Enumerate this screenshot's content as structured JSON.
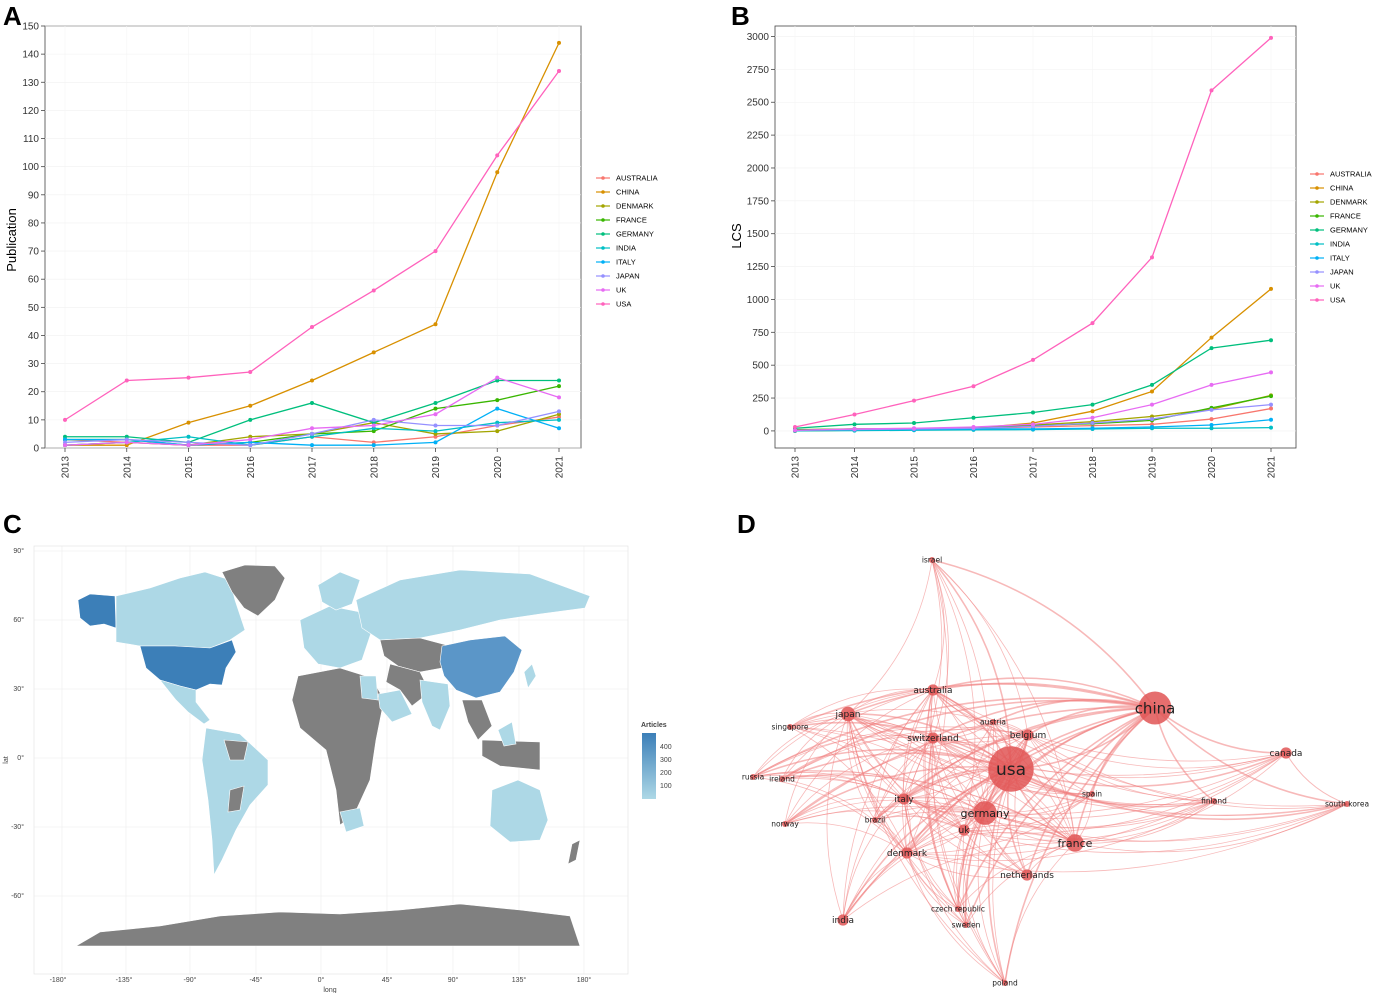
{
  "figure": {
    "panels": [
      "A",
      "B",
      "C",
      "D"
    ]
  },
  "chart_data": [
    {
      "id": "A",
      "type": "line",
      "ylabel": "Publication",
      "xlabel": "",
      "x": [
        "2013",
        "2014",
        "2015",
        "2016",
        "2017",
        "2018",
        "2019",
        "2020",
        "2021"
      ],
      "ylim": [
        0,
        150
      ],
      "yticks": [
        0,
        10,
        20,
        30,
        40,
        50,
        60,
        70,
        80,
        90,
        100,
        110,
        120,
        130,
        140,
        150
      ],
      "series": [
        {
          "name": "AUSTRALIA",
          "color": "#F8766D",
          "values": [
            3,
            2,
            1,
            1,
            4,
            2,
            4,
            8,
            11
          ]
        },
        {
          "name": "CHINA",
          "color": "#D89000",
          "values": [
            1,
            1,
            9,
            15,
            24,
            34,
            44,
            98,
            144
          ]
        },
        {
          "name": "DENMARK",
          "color": "#A3A500",
          "values": [
            1,
            2,
            1,
            4,
            5,
            9,
            5,
            6,
            12
          ]
        },
        {
          "name": "FRANCE",
          "color": "#39B600",
          "values": [
            3,
            3,
            1,
            2,
            5,
            6,
            14,
            17,
            22
          ]
        },
        {
          "name": "GERMANY",
          "color": "#00BF7D",
          "values": [
            4,
            4,
            2,
            10,
            16,
            9,
            16,
            24,
            24
          ]
        },
        {
          "name": "INDIA",
          "color": "#00BFC4",
          "values": [
            1,
            2,
            4,
            1,
            4,
            7,
            6,
            9,
            10
          ]
        },
        {
          "name": "ITALY",
          "color": "#00B0F6",
          "values": [
            3,
            3,
            1,
            2,
            1,
            1,
            2,
            14,
            7
          ]
        },
        {
          "name": "JAPAN",
          "color": "#9590FF",
          "values": [
            2,
            3,
            2,
            1,
            5,
            10,
            8,
            8,
            13
          ]
        },
        {
          "name": "UK",
          "color": "#E76BF3",
          "values": [
            1,
            2,
            1,
            3,
            7,
            8,
            12,
            25,
            18
          ]
        },
        {
          "name": "USA",
          "color": "#FF62BC",
          "values": [
            10,
            24,
            25,
            27,
            43,
            56,
            70,
            104,
            134
          ]
        }
      ]
    },
    {
      "id": "B",
      "type": "line",
      "ylabel": "LCS",
      "xlabel": "",
      "x": [
        "2013",
        "2014",
        "2015",
        "2016",
        "2017",
        "2018",
        "2019",
        "2020",
        "2021"
      ],
      "ylim": [
        -130,
        3080
      ],
      "yticks": [
        0,
        250,
        500,
        750,
        1000,
        1250,
        1500,
        1750,
        2000,
        2250,
        2500,
        2750,
        3000
      ],
      "series": [
        {
          "name": "AUSTRALIA",
          "color": "#F8766D",
          "values": [
            8,
            15,
            18,
            20,
            30,
            40,
            50,
            90,
            170
          ]
        },
        {
          "name": "CHINA",
          "color": "#D89000",
          "values": [
            0,
            5,
            10,
            20,
            60,
            150,
            300,
            710,
            1080
          ]
        },
        {
          "name": "DENMARK",
          "color": "#A3A500",
          "values": [
            0,
            5,
            10,
            25,
            45,
            70,
            110,
            165,
            270
          ]
        },
        {
          "name": "FRANCE",
          "color": "#39B600",
          "values": [
            10,
            15,
            15,
            25,
            40,
            55,
            80,
            175,
            265
          ]
        },
        {
          "name": "GERMANY",
          "color": "#00BF7D",
          "values": [
            20,
            50,
            60,
            100,
            140,
            200,
            350,
            630,
            690
          ]
        },
        {
          "name": "INDIA",
          "color": "#00BFC4",
          "values": [
            0,
            2,
            5,
            8,
            10,
            15,
            20,
            20,
            25
          ]
        },
        {
          "name": "ITALY",
          "color": "#00B0F6",
          "values": [
            5,
            10,
            10,
            15,
            15,
            20,
            30,
            45,
            85
          ]
        },
        {
          "name": "JAPAN",
          "color": "#9590FF",
          "values": [
            5,
            10,
            15,
            20,
            35,
            60,
            90,
            160,
            200
          ]
        },
        {
          "name": "UK",
          "color": "#E76BF3",
          "values": [
            5,
            15,
            20,
            30,
            50,
            100,
            200,
            350,
            445
          ]
        },
        {
          "name": "USA",
          "color": "#FF62BC",
          "values": [
            30,
            125,
            230,
            340,
            540,
            820,
            1320,
            2590,
            2990
          ]
        }
      ]
    },
    {
      "id": "C",
      "type": "heatmap",
      "xlabel": "long",
      "ylabel": "lat",
      "xticks": [
        "-180°",
        "-135°",
        "-90°",
        "-45°",
        "0°",
        "45°",
        "90°",
        "135°",
        "180°"
      ],
      "yticks": [
        "90°",
        "60°",
        "30°",
        "0°",
        "-30°",
        "-60°"
      ],
      "legend": {
        "title": "Articles",
        "ticks": [
          "400",
          "300",
          "200",
          "100"
        ]
      },
      "colors": {
        "no_data": "#808080",
        "low": "#ADD8E6",
        "high": "#3C7FB8",
        "ocean": "#ffffff"
      },
      "regions": [
        {
          "name": "USA",
          "level": 400
        },
        {
          "name": "China",
          "level": 300
        },
        {
          "name": "Alaska",
          "level": 400
        }
      ]
    },
    {
      "id": "D",
      "type": "network",
      "edge_color": "#F08080",
      "node_color": "#E05555",
      "nodes": [
        {
          "name": "israel",
          "size": 2
        },
        {
          "name": "australia",
          "size": 3
        },
        {
          "name": "china",
          "size": 10
        },
        {
          "name": "japan",
          "size": 4
        },
        {
          "name": "austria",
          "size": 2
        },
        {
          "name": "singapore",
          "size": 2
        },
        {
          "name": "switzerland",
          "size": 3
        },
        {
          "name": "belgium",
          "size": 3
        },
        {
          "name": "canada",
          "size": 3
        },
        {
          "name": "usa",
          "size": 14
        },
        {
          "name": "russia",
          "size": 2
        },
        {
          "name": "ireland",
          "size": 2
        },
        {
          "name": "spain",
          "size": 2
        },
        {
          "name": "south korea",
          "size": 2
        },
        {
          "name": "italy",
          "size": 3
        },
        {
          "name": "finland",
          "size": 2
        },
        {
          "name": "germany",
          "size": 7
        },
        {
          "name": "brazil",
          "size": 2
        },
        {
          "name": "norway",
          "size": 2
        },
        {
          "name": "uk",
          "size": 3
        },
        {
          "name": "france",
          "size": 5
        },
        {
          "name": "denmark",
          "size": 3
        },
        {
          "name": "netherlands",
          "size": 3
        },
        {
          "name": "czech republic",
          "size": 2
        },
        {
          "name": "india",
          "size": 3
        },
        {
          "name": "sweden",
          "size": 2
        },
        {
          "name": "poland",
          "size": 2
        }
      ]
    }
  ]
}
